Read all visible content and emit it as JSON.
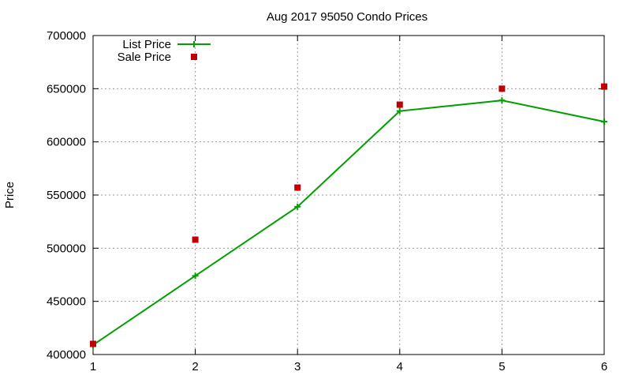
{
  "chart_data": {
    "type": "line",
    "title": "Aug 2017 95050 Condo Prices",
    "xlabel": "",
    "ylabel": "Price",
    "x": [
      1,
      2,
      3,
      4,
      5,
      6
    ],
    "xlim": [
      1,
      6
    ],
    "ylim": [
      400000,
      700000
    ],
    "xticks": [
      1,
      2,
      3,
      4,
      5,
      6
    ],
    "yticks": [
      400000,
      450000,
      500000,
      550000,
      600000,
      650000,
      700000
    ],
    "grid": true,
    "legend_position": "top-left",
    "series": [
      {
        "name": "List Price",
        "style": "line-points",
        "marker": "plus",
        "color": "#00a000",
        "values": [
          409000,
          474000,
          539000,
          629000,
          639000,
          619000
        ]
      },
      {
        "name": "Sale Price",
        "style": "points",
        "marker": "square",
        "color": "#c00000",
        "values": [
          410000,
          508000,
          557000,
          635000,
          650000,
          652000
        ]
      }
    ]
  }
}
